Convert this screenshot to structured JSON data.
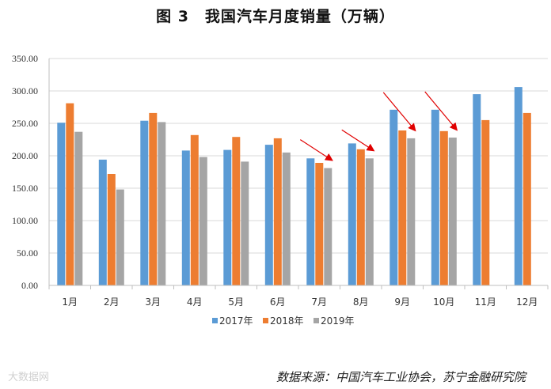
{
  "title": "图 3　我国汽车月度销量（万辆）",
  "source": "数据来源：中国汽车工业协会，苏宁金融研究院",
  "watermark": "大数据网",
  "colors": {
    "2017": "#5B9BD5",
    "2018": "#ED7D31",
    "2019": "#A5A5A5",
    "arrow": "#E00000",
    "grid": "#D9D9D9"
  },
  "chart_data": {
    "type": "bar",
    "title": "图 3　我国汽车月度销量（万辆）",
    "categories": [
      "1月",
      "2月",
      "3月",
      "4月",
      "5月",
      "6月",
      "7月",
      "8月",
      "9月",
      "10月",
      "11月",
      "12月"
    ],
    "ylim": [
      0,
      350
    ],
    "ytick_labels": [
      "0.00",
      "50.00",
      "100.00",
      "150.00",
      "200.00",
      "250.00",
      "300.00",
      "350.00"
    ],
    "grid": true,
    "legend_position": "bottom",
    "series": [
      {
        "name": "2017年",
        "values": [
          251,
          194,
          254,
          208,
          209,
          217,
          196,
          219,
          271,
          271,
          295,
          306
        ]
      },
      {
        "name": "2018年",
        "values": [
          281,
          172,
          266,
          232,
          229,
          227,
          189,
          210,
          239,
          238,
          255,
          266
        ]
      },
      {
        "name": "2019年",
        "values": [
          237,
          148,
          252,
          198,
          191,
          205,
          181,
          196,
          227,
          228,
          null,
          null
        ]
      }
    ],
    "annotations": [
      {
        "type": "arrow",
        "month": "7月",
        "direction": "down",
        "color": "red"
      },
      {
        "type": "arrow",
        "month": "8月",
        "direction": "down",
        "color": "red"
      },
      {
        "type": "arrow",
        "month": "9月",
        "direction": "down",
        "color": "red"
      },
      {
        "type": "arrow",
        "month": "10月",
        "direction": "down",
        "color": "red"
      }
    ]
  }
}
